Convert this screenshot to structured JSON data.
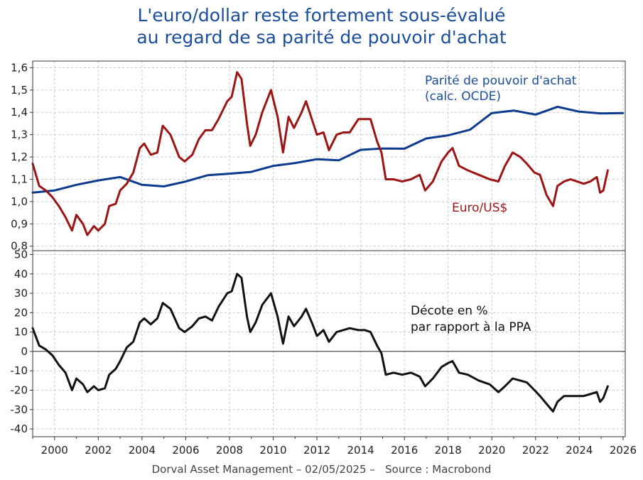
{
  "title_line1": "L'euro/dollar reste fortement sous-évalué",
  "title_line2": "au regard de sa parité de pouvoir d'achat",
  "footer": "Dorval Asset Management – 02/05/2025 –   Source : Macrobond",
  "colors": {
    "title": "#1a4d9c",
    "ppp": "#0c3a8c",
    "euro": "#9b1515",
    "gap": "#111111",
    "grid": "#c8c8c8"
  },
  "chart_data": [
    {
      "type": "line",
      "ylim": [
        0.78,
        1.63
      ],
      "xlim": [
        1999.0,
        2026.1
      ],
      "grid": true,
      "yticks": [
        "0,8",
        "0,9",
        "1,0",
        "1,1",
        "1,2",
        "1,3",
        "1,4",
        "1,5",
        "1,6"
      ],
      "series": [
        {
          "name": "Parité de pouvoir d'achat (calc. OCDE)",
          "name_line1": "Parité de pouvoir d'achat",
          "name_line2": "(calc. OCDE)",
          "x": [
            1999.0,
            2000.0,
            2001.0,
            2002.0,
            2003.0,
            2004.0,
            2005.0,
            2006.0,
            2007.0,
            2008.0,
            2009.0,
            2010.0,
            2011.0,
            2012.0,
            2013.0,
            2014.0,
            2015.0,
            2016.0,
            2017.0,
            2018.0,
            2019.0,
            2020.0,
            2021.0,
            2022.0,
            2023.0,
            2024.0,
            2025.0,
            2026.0
          ],
          "values": [
            1.04,
            1.05,
            1.075,
            1.095,
            1.11,
            1.075,
            1.068,
            1.09,
            1.118,
            1.125,
            1.133,
            1.16,
            1.173,
            1.19,
            1.185,
            1.232,
            1.238,
            1.237,
            1.283,
            1.297,
            1.322,
            1.397,
            1.408,
            1.39,
            1.425,
            1.403,
            1.395,
            1.397
          ]
        },
        {
          "name": "Euro/US$",
          "x": [
            1999.0,
            1999.3,
            1999.6,
            1999.9,
            2000.2,
            2000.5,
            2000.8,
            2001.0,
            2001.3,
            2001.5,
            2001.8,
            2002.0,
            2002.3,
            2002.5,
            2002.8,
            2003.0,
            2003.3,
            2003.6,
            2003.9,
            2004.1,
            2004.4,
            2004.7,
            2004.95,
            2005.3,
            2005.7,
            2005.95,
            2006.3,
            2006.6,
            2006.9,
            2007.2,
            2007.5,
            2007.9,
            2008.1,
            2008.35,
            2008.55,
            2008.8,
            2008.95,
            2009.2,
            2009.5,
            2009.9,
            2010.2,
            2010.45,
            2010.7,
            2010.95,
            2011.3,
            2011.5,
            2011.8,
            2012.0,
            2012.3,
            2012.55,
            2012.9,
            2013.2,
            2013.5,
            2013.9,
            2014.2,
            2014.45,
            2014.75,
            2014.95,
            2015.15,
            2015.5,
            2015.9,
            2016.3,
            2016.7,
            2016.95,
            2017.3,
            2017.7,
            2018.0,
            2018.2,
            2018.5,
            2018.9,
            2019.4,
            2019.9,
            2020.3,
            2020.6,
            2020.95,
            2021.3,
            2021.6,
            2021.95,
            2022.2,
            2022.5,
            2022.8,
            2023.0,
            2023.3,
            2023.6,
            2023.9,
            2024.2,
            2024.5,
            2024.8,
            2024.95,
            2025.1,
            2025.3
          ],
          "values": [
            1.17,
            1.07,
            1.05,
            1.02,
            0.98,
            0.93,
            0.87,
            0.94,
            0.9,
            0.85,
            0.89,
            0.87,
            0.9,
            0.98,
            0.99,
            1.05,
            1.08,
            1.13,
            1.24,
            1.26,
            1.21,
            1.22,
            1.34,
            1.3,
            1.2,
            1.18,
            1.21,
            1.28,
            1.32,
            1.32,
            1.37,
            1.45,
            1.47,
            1.58,
            1.55,
            1.35,
            1.25,
            1.3,
            1.4,
            1.5,
            1.38,
            1.22,
            1.38,
            1.33,
            1.4,
            1.45,
            1.36,
            1.3,
            1.31,
            1.23,
            1.3,
            1.31,
            1.31,
            1.37,
            1.37,
            1.37,
            1.27,
            1.22,
            1.1,
            1.1,
            1.09,
            1.1,
            1.12,
            1.05,
            1.09,
            1.18,
            1.22,
            1.24,
            1.16,
            1.14,
            1.12,
            1.1,
            1.09,
            1.16,
            1.22,
            1.2,
            1.17,
            1.13,
            1.12,
            1.03,
            0.98,
            1.07,
            1.09,
            1.1,
            1.09,
            1.08,
            1.09,
            1.11,
            1.04,
            1.05,
            1.14
          ],
          "label": "Euro/US$"
        }
      ]
    },
    {
      "type": "line",
      "ylim": [
        -44,
        52
      ],
      "xlim": [
        1999.0,
        2026.1
      ],
      "grid": true,
      "yticks": [
        "-40",
        "-30",
        "-20",
        "-10",
        "0",
        "10",
        "20",
        "30",
        "40",
        "50"
      ],
      "series": [
        {
          "name": "Décote en % par rapport à la PPA",
          "name_line1": "Décote en %",
          "name_line2": "par rapport à la PPA",
          "x": [
            1999.0,
            1999.3,
            1999.6,
            1999.9,
            2000.2,
            2000.5,
            2000.8,
            2001.0,
            2001.3,
            2001.5,
            2001.8,
            2002.0,
            2002.3,
            2002.5,
            2002.8,
            2003.0,
            2003.3,
            2003.6,
            2003.9,
            2004.1,
            2004.4,
            2004.7,
            2004.95,
            2005.3,
            2005.7,
            2005.95,
            2006.3,
            2006.6,
            2006.9,
            2007.2,
            2007.5,
            2007.9,
            2008.1,
            2008.35,
            2008.55,
            2008.8,
            2008.95,
            2009.2,
            2009.5,
            2009.9,
            2010.2,
            2010.45,
            2010.7,
            2010.95,
            2011.3,
            2011.5,
            2011.8,
            2012.0,
            2012.3,
            2012.55,
            2012.9,
            2013.2,
            2013.5,
            2013.9,
            2014.2,
            2014.45,
            2014.75,
            2014.95,
            2015.15,
            2015.5,
            2015.9,
            2016.3,
            2016.7,
            2016.95,
            2017.3,
            2017.7,
            2018.0,
            2018.2,
            2018.5,
            2018.9,
            2019.4,
            2019.9,
            2020.3,
            2020.6,
            2020.95,
            2021.3,
            2021.6,
            2021.95,
            2022.2,
            2022.5,
            2022.8,
            2023.0,
            2023.3,
            2023.6,
            2023.9,
            2024.2,
            2024.5,
            2024.8,
            2024.95,
            2025.1,
            2025.3
          ],
          "values": [
            12,
            3,
            1,
            -2,
            -7,
            -11,
            -20,
            -14,
            -17,
            -21,
            -18,
            -20,
            -19,
            -12,
            -9,
            -5,
            2,
            5,
            15,
            17,
            14,
            17,
            25,
            22,
            12,
            10,
            13,
            17,
            18,
            16,
            23,
            30,
            31,
            40,
            38,
            18,
            10,
            15,
            24,
            30,
            18,
            4,
            18,
            13,
            18,
            22,
            14,
            8,
            11,
            5,
            10,
            11,
            12,
            11,
            11,
            10,
            3,
            -1,
            -12,
            -11,
            -12,
            -11,
            -13,
            -18,
            -14,
            -8,
            -6,
            -5,
            -11,
            -12,
            -15,
            -17,
            -21,
            -18,
            -14,
            -15,
            -16,
            -20,
            -23,
            -27,
            -31,
            -26,
            -23,
            -23,
            -23,
            -23,
            -22,
            -21,
            -26,
            -24,
            -18
          ]
        }
      ]
    }
  ],
  "x_ticks": [
    "2000",
    "2002",
    "2004",
    "2006",
    "2008",
    "2010",
    "2012",
    "2014",
    "2016",
    "2018",
    "2020",
    "2022",
    "2024",
    "2026"
  ]
}
